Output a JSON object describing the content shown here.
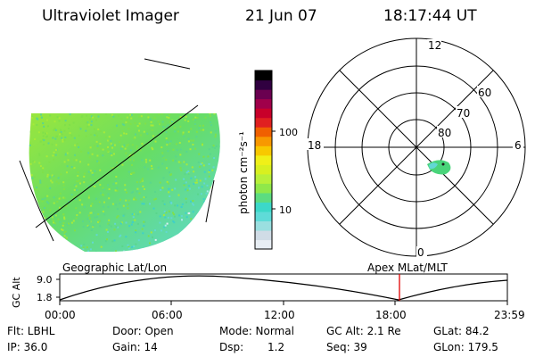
{
  "header": {
    "title": "Ultraviolet Imager",
    "date": "21 Jun 07",
    "time": "18:17:44 UT"
  },
  "colorbar": {
    "unit_label": "photon cm⁻²s⁻¹",
    "tick_100": "100",
    "tick_10": "10",
    "colors": [
      "#e8eef4",
      "#d0dce6",
      "#9adfe0",
      "#5fdbd8",
      "#3cd8c8",
      "#5cdc80",
      "#8fe84a",
      "#b8f03a",
      "#d8f020",
      "#f0f018",
      "#f8c800",
      "#f89800",
      "#f06000",
      "#e02020",
      "#c8002a",
      "#a0004a",
      "#6a0050",
      "#300040",
      "#000000"
    ]
  },
  "polar": {
    "labels": {
      "top": "12",
      "bottom": "0",
      "left": "18",
      "right": "6",
      "lat_60": "60",
      "lat_70": "70",
      "lat_80": "80"
    }
  },
  "timeline": {
    "geo_label": "Geographic Lat/Lon",
    "apex_label": "Apex  MLat/MLT",
    "axis_title": "GC Alt",
    "ytick_high": "9.0",
    "ytick_low": "1.8",
    "xticks": [
      "00:00",
      "06:00",
      "12:00",
      "18:00",
      "23:59"
    ],
    "marker_color": "#e00000"
  },
  "info": {
    "flt": "Flt: LBHL",
    "ip": "IP: 36.0",
    "door": "Door: Open",
    "gain": "Gain: 14",
    "mode": "Mode: Normal",
    "dsp_label": "Dsp:",
    "dsp_value": "1.2",
    "gcalt": "GC Alt: 2.1 Re",
    "seq": "Seq: 39",
    "glat": "GLat:  84.2",
    "glon": "GLon: 179.5"
  }
}
